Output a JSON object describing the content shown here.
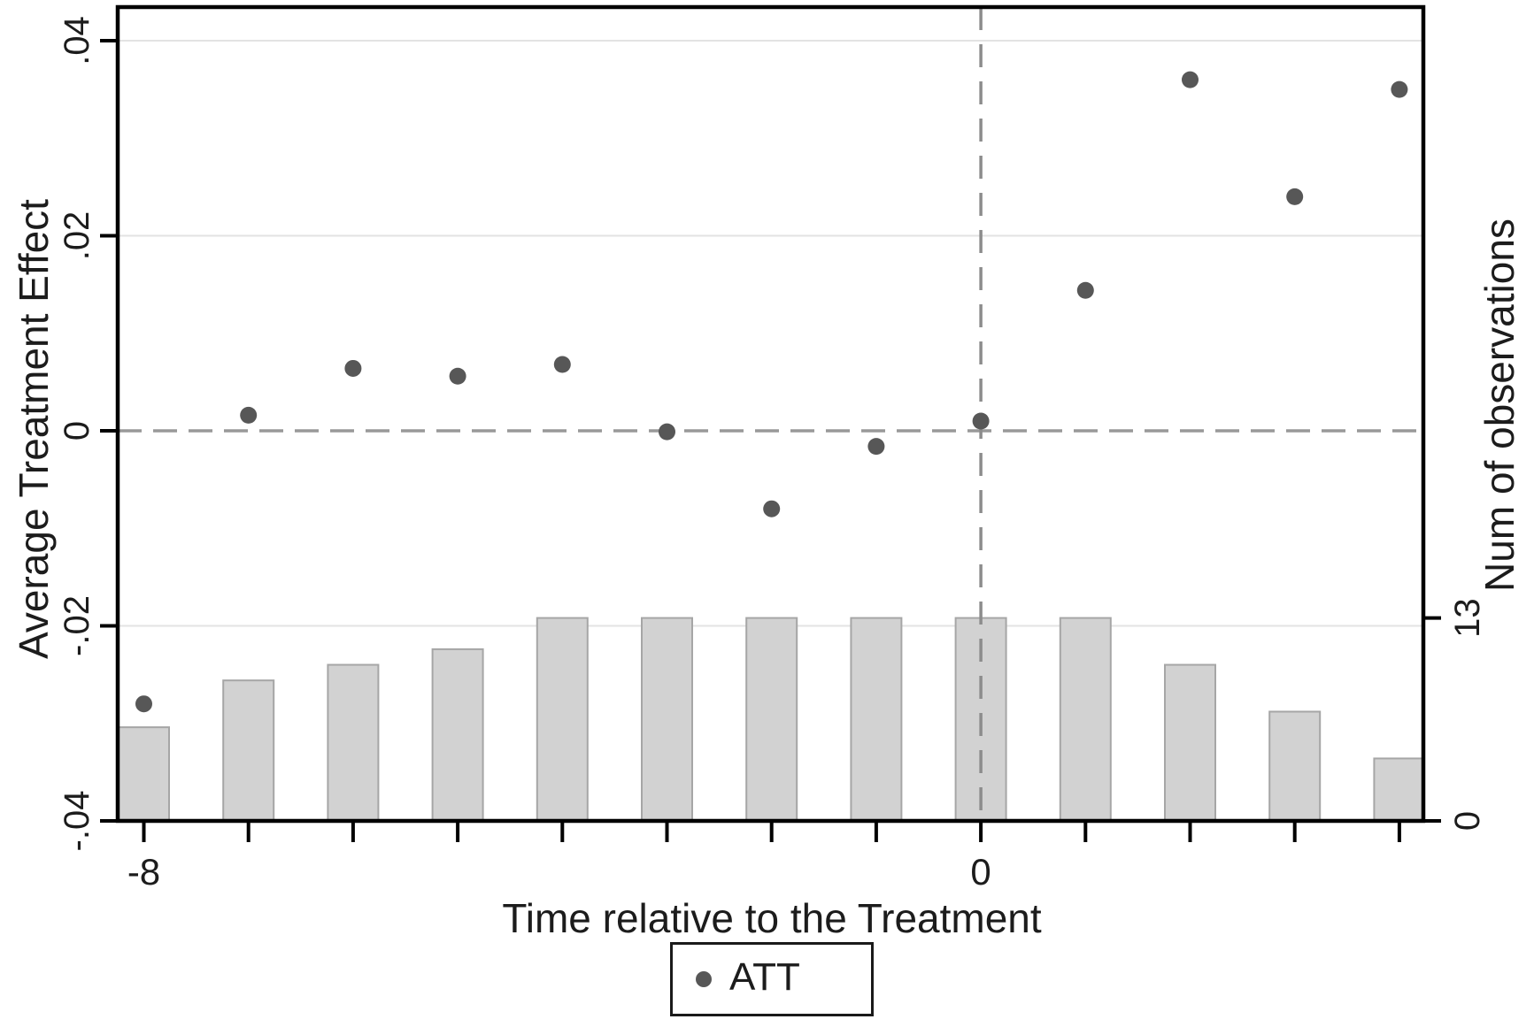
{
  "chart_data": {
    "type": "combo-scatter-bar",
    "title": "",
    "xlabel": "Time relative to the Treatment",
    "ylabel_left": "Average Treatment Effect",
    "ylabel_right": "Num of observations",
    "x": [
      -8,
      -7,
      -6,
      -5,
      -4,
      -3,
      -2,
      -1,
      0,
      1,
      2,
      3,
      4
    ],
    "series": [
      {
        "name": "ATT",
        "type": "scatter",
        "axis": "left",
        "values": [
          -0.028,
          0.0016,
          0.0064,
          0.0056,
          0.0068,
          -0.0001,
          -0.008,
          -0.0016,
          0.001,
          0.0144,
          0.036,
          0.024,
          0.035
        ]
      },
      {
        "name": "Num of observations",
        "type": "bar",
        "axis": "right",
        "values": [
          6,
          9,
          10,
          11,
          13,
          13,
          13,
          13,
          13,
          13,
          10,
          7,
          4
        ]
      }
    ],
    "left_axis": {
      "ticks": [
        ".04",
        ".02",
        "0",
        "-.02",
        "-.04"
      ],
      "tick_values": [
        0.04,
        0.02,
        0,
        -0.02,
        -0.04
      ],
      "range": [
        -0.04,
        0.0434
      ],
      "label_rotation": 90
    },
    "right_axis": {
      "ticks": [
        "13",
        "0"
      ],
      "tick_values": [
        13,
        0
      ],
      "range": [
        0,
        52.1
      ],
      "label_rotation": 90
    },
    "x_axis": {
      "ticks": [
        "-8",
        "0"
      ],
      "tick_values": [
        -8,
        0
      ],
      "minor_tick_values": [
        -8,
        -7,
        -6,
        -5,
        -4,
        -3,
        -2,
        -1,
        0,
        1,
        2,
        3,
        4
      ],
      "range": [
        -8.25,
        4.22
      ]
    },
    "reference_lines": {
      "horizontal_at": 0,
      "vertical_at": 0,
      "style": "dashed"
    },
    "legend": {
      "entries": [
        {
          "marker": "dot",
          "label": "ATT"
        }
      ],
      "position": "bottom-center"
    },
    "grid": "horizontal-on",
    "colors": {
      "bar_fill": "#d2d2d2",
      "bar_stroke": "#a6a6a6",
      "point": "#575757",
      "grid_line": "#e3e3e3",
      "dash_line": "#999999",
      "axis_line": "#000000",
      "text": "#1c1c1c",
      "background": "#ffffff"
    }
  }
}
